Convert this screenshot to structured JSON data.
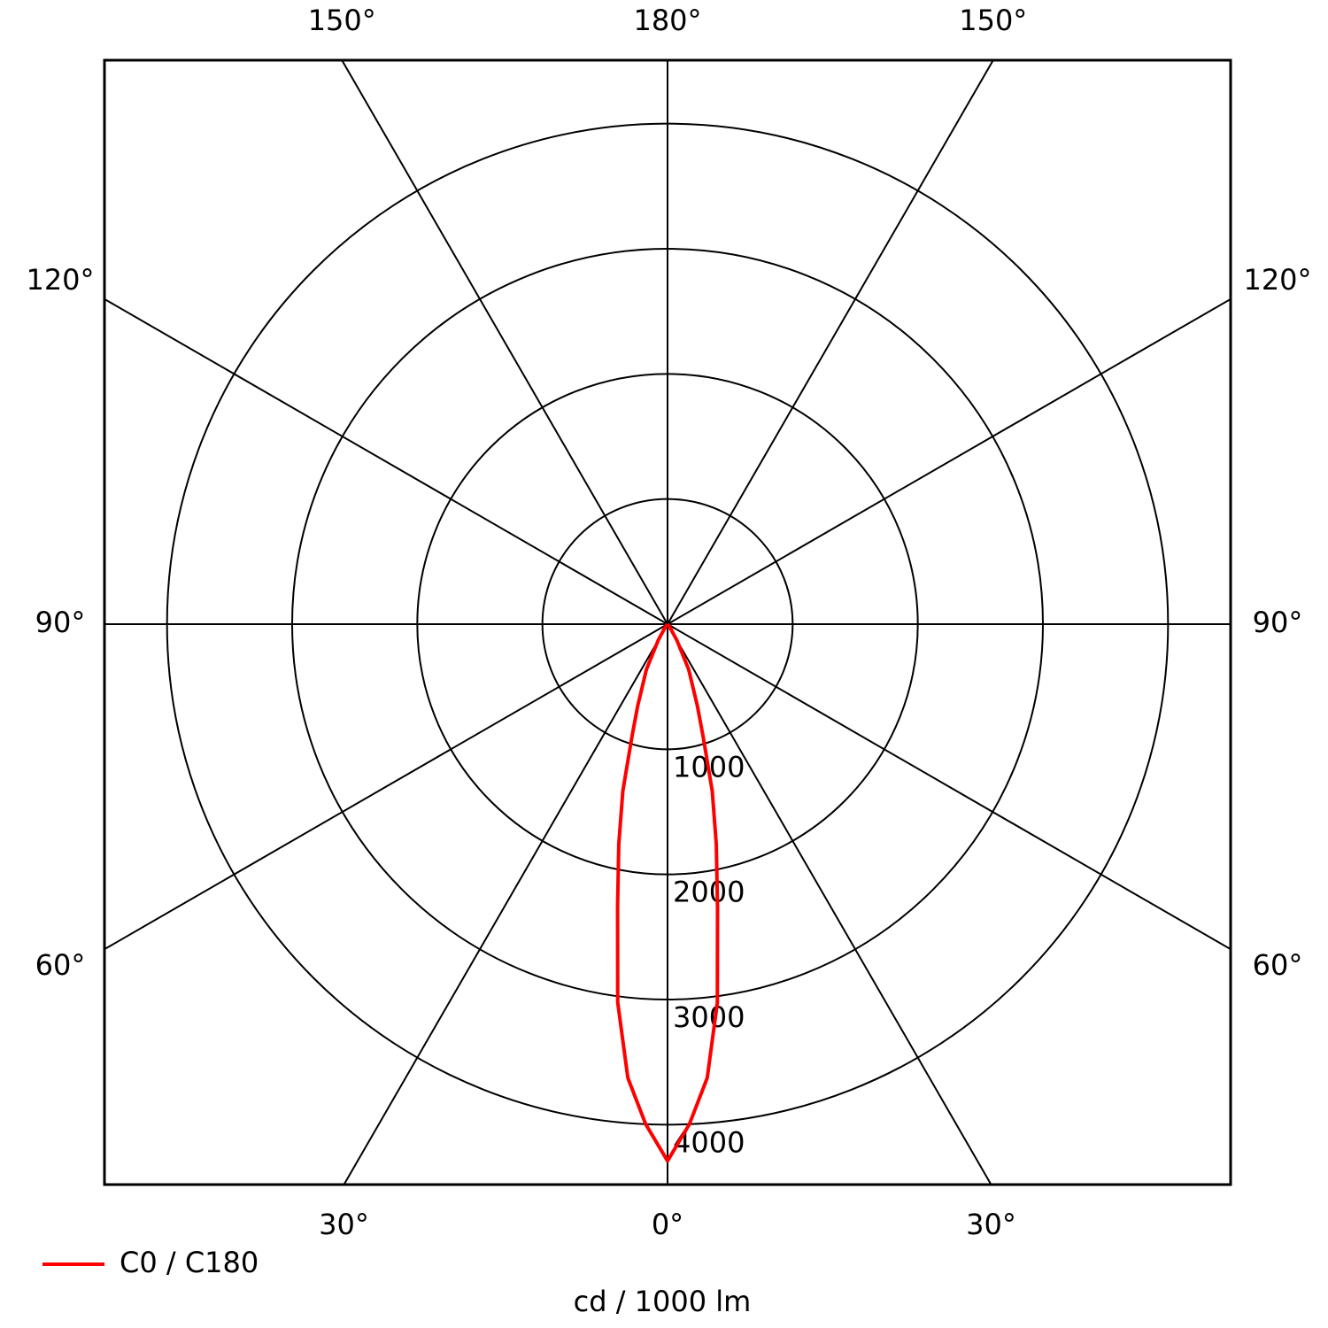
{
  "chart_data": {
    "type": "polar",
    "unit_label": "cd / 1000 lm",
    "x": [
      -45,
      -40,
      -35,
      -30,
      -25,
      -20,
      -17.5,
      -15,
      -12.5,
      -10,
      -7.5,
      -5,
      -2.5,
      0,
      2.5,
      5,
      7.5,
      10,
      12.5,
      15,
      17.5,
      20,
      25,
      30,
      35,
      40,
      45
    ],
    "series": [
      {
        "name": "C0 / C180",
        "color": "#ff0000",
        "values": [
          0,
          10,
          40,
          150,
          400,
          700,
          950,
          1380,
          1800,
          2300,
          3050,
          3640,
          4000,
          4290,
          4000,
          3640,
          3050,
          2300,
          1800,
          1380,
          950,
          700,
          400,
          150,
          40,
          10,
          0
        ]
      }
    ],
    "rlim": [
      0,
      4500
    ],
    "rticks": [
      1000,
      2000,
      3000,
      4000
    ],
    "thetaticks": [
      {
        "value": 0,
        "label": "0°"
      },
      {
        "value": 30,
        "label": "30°"
      },
      {
        "value": 60,
        "label": "60°"
      },
      {
        "value": 90,
        "label": "90°"
      },
      {
        "value": 120,
        "label": "120°"
      },
      {
        "value": 150,
        "label": "150°"
      },
      {
        "value": 180,
        "label": "180°"
      },
      {
        "value": -150,
        "label": "150°"
      },
      {
        "value": -120,
        "label": "120°"
      },
      {
        "value": -90,
        "label": "90°"
      },
      {
        "value": -60,
        "label": "60°"
      },
      {
        "value": -30,
        "label": "30°"
      }
    ],
    "grid": true
  }
}
